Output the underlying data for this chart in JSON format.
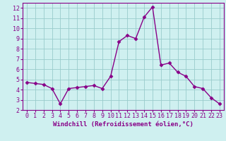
{
  "x": [
    0,
    1,
    2,
    3,
    4,
    5,
    6,
    7,
    8,
    9,
    10,
    11,
    12,
    13,
    14,
    15,
    16,
    17,
    18,
    19,
    20,
    21,
    22,
    23
  ],
  "y": [
    4.7,
    4.6,
    4.5,
    4.1,
    2.6,
    4.1,
    4.2,
    4.3,
    4.4,
    4.1,
    5.3,
    8.7,
    9.3,
    9.0,
    11.1,
    12.1,
    6.4,
    6.6,
    5.7,
    5.3,
    4.3,
    4.1,
    3.2,
    2.6
  ],
  "line_color": "#880088",
  "marker": "D",
  "marker_size": 2.5,
  "linewidth": 1.0,
  "bg_color": "#cff0f0",
  "grid_color": "#99cccc",
  "axis_color": "#880088",
  "xlabel": "Windchill (Refroidissement éolien,°C)",
  "xlabel_fontsize": 6.5,
  "xlim": [
    -0.5,
    23.5
  ],
  "ylim": [
    2,
    12.5
  ],
  "yticks": [
    2,
    3,
    4,
    5,
    6,
    7,
    8,
    9,
    10,
    11,
    12
  ],
  "xticks": [
    0,
    1,
    2,
    3,
    4,
    5,
    6,
    7,
    8,
    9,
    10,
    11,
    12,
    13,
    14,
    15,
    16,
    17,
    18,
    19,
    20,
    21,
    22,
    23
  ],
  "tick_fontsize": 6
}
